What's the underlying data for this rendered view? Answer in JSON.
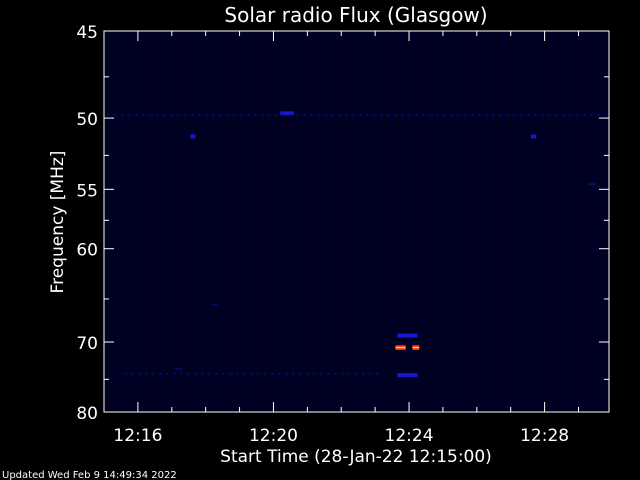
{
  "title": "Solar radio Flux (Glasgow)",
  "footer": "Updated Wed Feb  9 14:49:34 2022",
  "chart_data": {
    "type": "heatmap",
    "title": "Solar radio Flux (Glasgow)",
    "xlabel": "Start Time (28-Jan-22 12:15:00)",
    "ylabel": "Frequency [MHz]",
    "x_unit": "minutes after 12:15:00",
    "xlim": [
      0,
      14.9
    ],
    "ylim": [
      45,
      80
    ],
    "y_scale": "reciprocal (frequency increases downward, nonlinear spacing)",
    "x_ticks": [
      {
        "value": 1,
        "label": "12:16"
      },
      {
        "value": 5,
        "label": "12:20"
      },
      {
        "value": 9,
        "label": "12:24"
      },
      {
        "value": 13,
        "label": "12:28"
      }
    ],
    "y_ticks": [
      {
        "value": 45,
        "label": "45"
      },
      {
        "value": 50,
        "label": "50"
      },
      {
        "value": 55,
        "label": "55"
      },
      {
        "value": 60,
        "label": "60"
      },
      {
        "value": 70,
        "label": "70"
      },
      {
        "value": 80,
        "label": "80"
      }
    ],
    "y_minor_ticks": [
      47.5,
      52.5,
      57.5,
      65,
      75
    ],
    "x_minor_ticks": [
      0,
      2,
      3,
      4,
      6,
      7,
      8,
      10,
      11,
      12,
      14
    ],
    "background_color": "#000020",
    "colors": {
      "weak": "#0a0a70",
      "medium": "#1818d0",
      "strong": "#ff2000",
      "peak": "#ffd070"
    },
    "features": [
      {
        "t": 8.6,
        "t_end": 8.9,
        "f": 70.7,
        "intensity": "strong"
      },
      {
        "t": 9.1,
        "t_end": 9.3,
        "f": 70.7,
        "intensity": "strong"
      },
      {
        "t": 8.65,
        "t_end": 9.25,
        "f": 69.2,
        "intensity": "medium"
      },
      {
        "t": 8.65,
        "t_end": 9.25,
        "f": 74.4,
        "intensity": "medium"
      },
      {
        "t": 2.55,
        "t_end": 2.7,
        "f": 51.2,
        "intensity": "medium"
      },
      {
        "t": 12.6,
        "t_end": 12.75,
        "f": 51.2,
        "intensity": "medium"
      },
      {
        "t": 5.2,
        "t_end": 5.6,
        "f": 49.7,
        "intensity": "medium"
      },
      {
        "t": 0.1,
        "t_end": 14.8,
        "f": 49.8,
        "intensity": "weak"
      },
      {
        "t": 14.3,
        "t_end": 14.5,
        "f": 54.6,
        "intensity": "weak"
      },
      {
        "t": 3.2,
        "t_end": 3.35,
        "f": 65.6,
        "intensity": "weak"
      },
      {
        "t": 2.1,
        "t_end": 2.3,
        "f": 73.5,
        "intensity": "weak"
      },
      {
        "t": 0.6,
        "t_end": 8.2,
        "f": 74.2,
        "intensity": "weak"
      }
    ]
  }
}
